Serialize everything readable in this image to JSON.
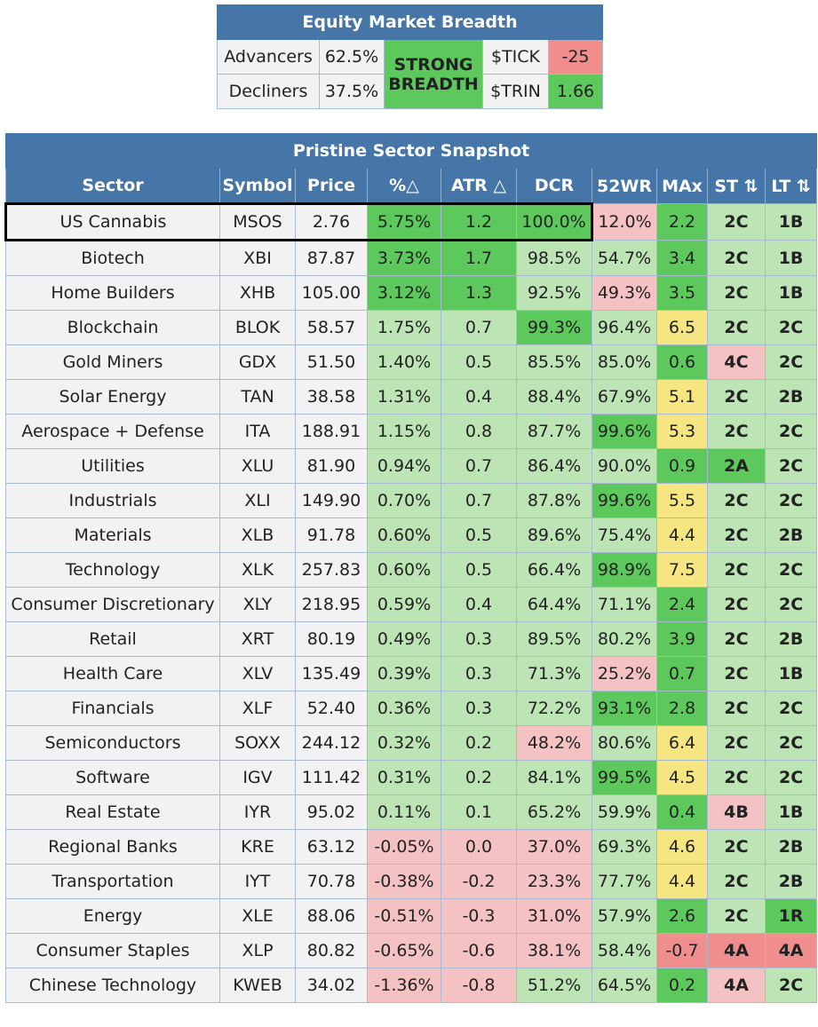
{
  "colors": {
    "header_blue": "#4675a8",
    "dark_green": "#5dc95c",
    "light_green": "#bce4b5",
    "pink": "#f4c2c2",
    "red": "#f08d8d",
    "yellow": "#f5e682",
    "gray": "#f2f2f2"
  },
  "breadth": {
    "title": "Equity Market Breadth",
    "advancers_label": "Advancers",
    "advancers_value": "62.5%",
    "decliners_label": "Decliners",
    "decliners_value": "37.5%",
    "status_line1": "STRONG",
    "status_line2": "BREADTH",
    "tick_label": "$TICK",
    "tick_value": "-25",
    "trin_label": "$TRIN",
    "trin_value": "1.66"
  },
  "sector": {
    "title": "Pristine Sector Snapshot",
    "headers": [
      "Sector",
      "Symbol",
      "Price",
      "%△",
      "ATR △",
      "DCR",
      "52WR",
      "MAx",
      "ST ⇅",
      "LT ⇅"
    ],
    "rows": [
      {
        "sector": "US Cannabis",
        "symbol": "MSOS",
        "price": "2.76",
        "pct": "5.75%",
        "atr": "1.2",
        "dcr": "100.0%",
        "wr": "12.0%",
        "max": "2.2",
        "st": "2C",
        "lt": "1B"
      },
      {
        "sector": "Biotech",
        "symbol": "XBI",
        "price": "87.87",
        "pct": "3.73%",
        "atr": "1.7",
        "dcr": "98.5%",
        "wr": "54.7%",
        "max": "3.4",
        "st": "2C",
        "lt": "1B"
      },
      {
        "sector": "Home Builders",
        "symbol": "XHB",
        "price": "105.00",
        "pct": "3.12%",
        "atr": "1.3",
        "dcr": "92.5%",
        "wr": "49.3%",
        "max": "3.5",
        "st": "2C",
        "lt": "1B"
      },
      {
        "sector": "Blockchain",
        "symbol": "BLOK",
        "price": "58.57",
        "pct": "1.75%",
        "atr": "0.7",
        "dcr": "99.3%",
        "wr": "96.4%",
        "max": "6.5",
        "st": "2C",
        "lt": "2C"
      },
      {
        "sector": "Gold Miners",
        "symbol": "GDX",
        "price": "51.50",
        "pct": "1.40%",
        "atr": "0.5",
        "dcr": "85.5%",
        "wr": "85.0%",
        "max": "0.6",
        "st": "4C",
        "lt": "2C"
      },
      {
        "sector": "Solar Energy",
        "symbol": "TAN",
        "price": "38.58",
        "pct": "1.31%",
        "atr": "0.4",
        "dcr": "88.4%",
        "wr": "67.9%",
        "max": "5.1",
        "st": "2C",
        "lt": "2B"
      },
      {
        "sector": "Aerospace + Defense",
        "symbol": "ITA",
        "price": "188.91",
        "pct": "1.15%",
        "atr": "0.8",
        "dcr": "87.7%",
        "wr": "99.6%",
        "max": "5.3",
        "st": "2C",
        "lt": "2C"
      },
      {
        "sector": "Utilities",
        "symbol": "XLU",
        "price": "81.90",
        "pct": "0.94%",
        "atr": "0.7",
        "dcr": "86.4%",
        "wr": "90.0%",
        "max": "0.9",
        "st": "2A",
        "lt": "2C"
      },
      {
        "sector": "Industrials",
        "symbol": "XLI",
        "price": "149.90",
        "pct": "0.70%",
        "atr": "0.7",
        "dcr": "87.8%",
        "wr": "99.6%",
        "max": "5.5",
        "st": "2C",
        "lt": "2C"
      },
      {
        "sector": "Materials",
        "symbol": "XLB",
        "price": "91.78",
        "pct": "0.60%",
        "atr": "0.5",
        "dcr": "89.6%",
        "wr": "75.4%",
        "max": "4.4",
        "st": "2C",
        "lt": "2B"
      },
      {
        "sector": "Technology",
        "symbol": "XLK",
        "price": "257.83",
        "pct": "0.60%",
        "atr": "0.5",
        "dcr": "66.4%",
        "wr": "98.9%",
        "max": "7.5",
        "st": "2C",
        "lt": "2C"
      },
      {
        "sector": "Consumer Discretionary",
        "symbol": "XLY",
        "price": "218.95",
        "pct": "0.59%",
        "atr": "0.4",
        "dcr": "64.4%",
        "wr": "71.1%",
        "max": "2.4",
        "st": "2C",
        "lt": "2C"
      },
      {
        "sector": "Retail",
        "symbol": "XRT",
        "price": "80.19",
        "pct": "0.49%",
        "atr": "0.3",
        "dcr": "89.5%",
        "wr": "80.2%",
        "max": "3.9",
        "st": "2C",
        "lt": "2B"
      },
      {
        "sector": "Health Care",
        "symbol": "XLV",
        "price": "135.49",
        "pct": "0.39%",
        "atr": "0.3",
        "dcr": "71.3%",
        "wr": "25.2%",
        "max": "0.7",
        "st": "2C",
        "lt": "1B"
      },
      {
        "sector": "Financials",
        "symbol": "XLF",
        "price": "52.40",
        "pct": "0.36%",
        "atr": "0.3",
        "dcr": "72.2%",
        "wr": "93.1%",
        "max": "2.8",
        "st": "2C",
        "lt": "2C"
      },
      {
        "sector": "Semiconductors",
        "symbol": "SOXX",
        "price": "244.12",
        "pct": "0.32%",
        "atr": "0.2",
        "dcr": "48.2%",
        "wr": "80.6%",
        "max": "6.4",
        "st": "2C",
        "lt": "2C"
      },
      {
        "sector": "Software",
        "symbol": "IGV",
        "price": "111.42",
        "pct": "0.31%",
        "atr": "0.2",
        "dcr": "84.1%",
        "wr": "99.5%",
        "max": "4.5",
        "st": "2C",
        "lt": "2C"
      },
      {
        "sector": "Real Estate",
        "symbol": "IYR",
        "price": "95.02",
        "pct": "0.11%",
        "atr": "0.1",
        "dcr": "65.2%",
        "wr": "59.9%",
        "max": "0.4",
        "st": "4B",
        "lt": "1B"
      },
      {
        "sector": "Regional Banks",
        "symbol": "KRE",
        "price": "63.12",
        "pct": "-0.05%",
        "atr": "0.0",
        "dcr": "37.0%",
        "wr": "69.3%",
        "max": "4.6",
        "st": "2C",
        "lt": "2B"
      },
      {
        "sector": "Transportation",
        "symbol": "IYT",
        "price": "70.78",
        "pct": "-0.38%",
        "atr": "-0.2",
        "dcr": "23.3%",
        "wr": "77.7%",
        "max": "4.4",
        "st": "2C",
        "lt": "2B"
      },
      {
        "sector": "Energy",
        "symbol": "XLE",
        "price": "88.06",
        "pct": "-0.51%",
        "atr": "-0.3",
        "dcr": "31.0%",
        "wr": "57.9%",
        "max": "2.6",
        "st": "2C",
        "lt": "1R"
      },
      {
        "sector": "Consumer Staples",
        "symbol": "XLP",
        "price": "80.82",
        "pct": "-0.65%",
        "atr": "-0.6",
        "dcr": "38.1%",
        "wr": "58.4%",
        "max": "-0.7",
        "st": "4A",
        "lt": "4A"
      },
      {
        "sector": "Chinese Technology",
        "symbol": "KWEB",
        "price": "34.02",
        "pct": "-1.36%",
        "atr": "-0.8",
        "dcr": "51.2%",
        "wr": "64.5%",
        "max": "0.2",
        "st": "4A",
        "lt": "2C"
      }
    ]
  }
}
